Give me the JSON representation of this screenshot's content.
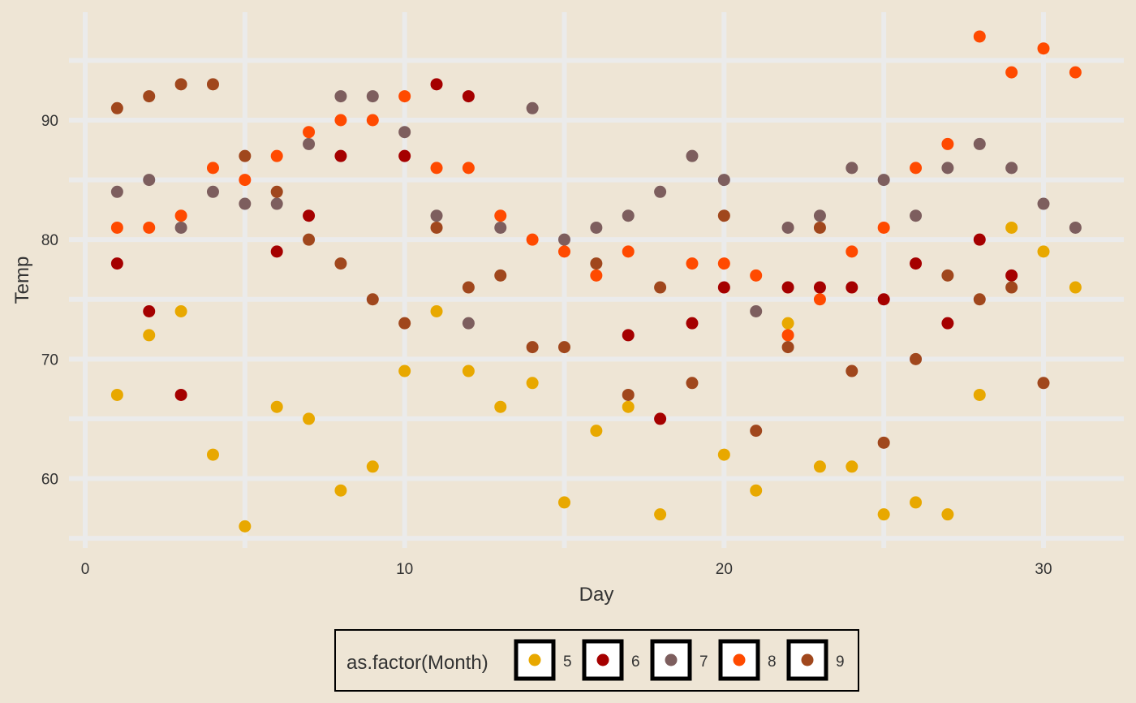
{
  "chart_data": {
    "type": "scatter",
    "xlabel": "Day",
    "ylabel": "Temp",
    "xlim": [
      -0.5,
      32
    ],
    "ylim": [
      54.5,
      98
    ],
    "x_ticks": [
      0,
      10,
      20,
      30
    ],
    "y_ticks": [
      60,
      70,
      80,
      90
    ],
    "grid": true,
    "legend": {
      "position": "bottom",
      "title": "as.factor(Month)",
      "entries": [
        {
          "label": "5",
          "color": "#E8A800"
        },
        {
          "label": "6",
          "color": "#A50000"
        },
        {
          "label": "7",
          "color": "#7D5E5E"
        },
        {
          "label": "8",
          "color": "#FF4A00"
        },
        {
          "label": "9",
          "color": "#A0471D"
        }
      ]
    },
    "series": [
      {
        "name": "5",
        "color": "#E8A800",
        "points": [
          [
            1,
            67
          ],
          [
            2,
            72
          ],
          [
            3,
            74
          ],
          [
            4,
            62
          ],
          [
            5,
            56
          ],
          [
            6,
            66
          ],
          [
            7,
            65
          ],
          [
            8,
            59
          ],
          [
            9,
            61
          ],
          [
            10,
            69
          ],
          [
            11,
            74
          ],
          [
            12,
            69
          ],
          [
            13,
            66
          ],
          [
            14,
            68
          ],
          [
            15,
            58
          ],
          [
            16,
            64
          ],
          [
            17,
            66
          ],
          [
            18,
            57
          ],
          [
            20,
            62
          ],
          [
            21,
            59
          ],
          [
            22,
            73
          ],
          [
            23,
            61
          ],
          [
            24,
            61
          ],
          [
            25,
            57
          ],
          [
            26,
            58
          ],
          [
            27,
            57
          ],
          [
            28,
            67
          ],
          [
            29,
            81
          ],
          [
            30,
            79
          ],
          [
            31,
            76
          ]
        ]
      },
      {
        "name": "6",
        "color": "#A50000",
        "points": [
          [
            1,
            78
          ],
          [
            2,
            74
          ],
          [
            3,
            67
          ],
          [
            6,
            79
          ],
          [
            7,
            82
          ],
          [
            8,
            87
          ],
          [
            10,
            87
          ],
          [
            11,
            93
          ],
          [
            12,
            92
          ],
          [
            17,
            72
          ],
          [
            18,
            65
          ],
          [
            19,
            73
          ],
          [
            20,
            76
          ],
          [
            22,
            76
          ],
          [
            23,
            76
          ],
          [
            24,
            76
          ],
          [
            25,
            75
          ],
          [
            26,
            78
          ],
          [
            27,
            73
          ],
          [
            28,
            80
          ],
          [
            29,
            77
          ]
        ]
      },
      {
        "name": "7",
        "color": "#7D5E5E",
        "points": [
          [
            1,
            84
          ],
          [
            2,
            85
          ],
          [
            3,
            81
          ],
          [
            4,
            84
          ],
          [
            5,
            83
          ],
          [
            6,
            83
          ],
          [
            7,
            88
          ],
          [
            8,
            92
          ],
          [
            9,
            92
          ],
          [
            10,
            89
          ],
          [
            11,
            82
          ],
          [
            12,
            73
          ],
          [
            13,
            81
          ],
          [
            14,
            91
          ],
          [
            15,
            80
          ],
          [
            16,
            81
          ],
          [
            17,
            82
          ],
          [
            18,
            84
          ],
          [
            19,
            87
          ],
          [
            20,
            85
          ],
          [
            21,
            74
          ],
          [
            22,
            81
          ],
          [
            23,
            82
          ],
          [
            24,
            86
          ],
          [
            25,
            85
          ],
          [
            26,
            82
          ],
          [
            27,
            86
          ],
          [
            28,
            88
          ],
          [
            29,
            86
          ],
          [
            30,
            83
          ],
          [
            31,
            81
          ]
        ]
      },
      {
        "name": "8",
        "color": "#FF4A00",
        "points": [
          [
            1,
            81
          ],
          [
            2,
            81
          ],
          [
            3,
            82
          ],
          [
            4,
            86
          ],
          [
            5,
            85
          ],
          [
            6,
            87
          ],
          [
            7,
            89
          ],
          [
            8,
            90
          ],
          [
            9,
            90
          ],
          [
            10,
            92
          ],
          [
            11,
            86
          ],
          [
            12,
            86
          ],
          [
            13,
            82
          ],
          [
            14,
            80
          ],
          [
            15,
            79
          ],
          [
            16,
            77
          ],
          [
            17,
            79
          ],
          [
            19,
            78
          ],
          [
            20,
            78
          ],
          [
            21,
            77
          ],
          [
            22,
            72
          ],
          [
            23,
            75
          ],
          [
            24,
            79
          ],
          [
            25,
            81
          ],
          [
            26,
            86
          ],
          [
            27,
            88
          ],
          [
            28,
            97
          ],
          [
            29,
            94
          ],
          [
            30,
            96
          ],
          [
            31,
            94
          ]
        ]
      },
      {
        "name": "9",
        "color": "#A0471D",
        "points": [
          [
            1,
            91
          ],
          [
            2,
            92
          ],
          [
            3,
            93
          ],
          [
            4,
            93
          ],
          [
            5,
            87
          ],
          [
            6,
            84
          ],
          [
            7,
            80
          ],
          [
            8,
            78
          ],
          [
            9,
            75
          ],
          [
            10,
            73
          ],
          [
            11,
            81
          ],
          [
            12,
            76
          ],
          [
            13,
            77
          ],
          [
            14,
            71
          ],
          [
            15,
            71
          ],
          [
            16,
            78
          ],
          [
            17,
            67
          ],
          [
            18,
            76
          ],
          [
            19,
            68
          ],
          [
            20,
            82
          ],
          [
            21,
            64
          ],
          [
            22,
            71
          ],
          [
            23,
            81
          ],
          [
            24,
            69
          ],
          [
            25,
            63
          ],
          [
            26,
            70
          ],
          [
            27,
            77
          ],
          [
            28,
            75
          ],
          [
            29,
            76
          ],
          [
            30,
            68
          ]
        ]
      }
    ]
  }
}
